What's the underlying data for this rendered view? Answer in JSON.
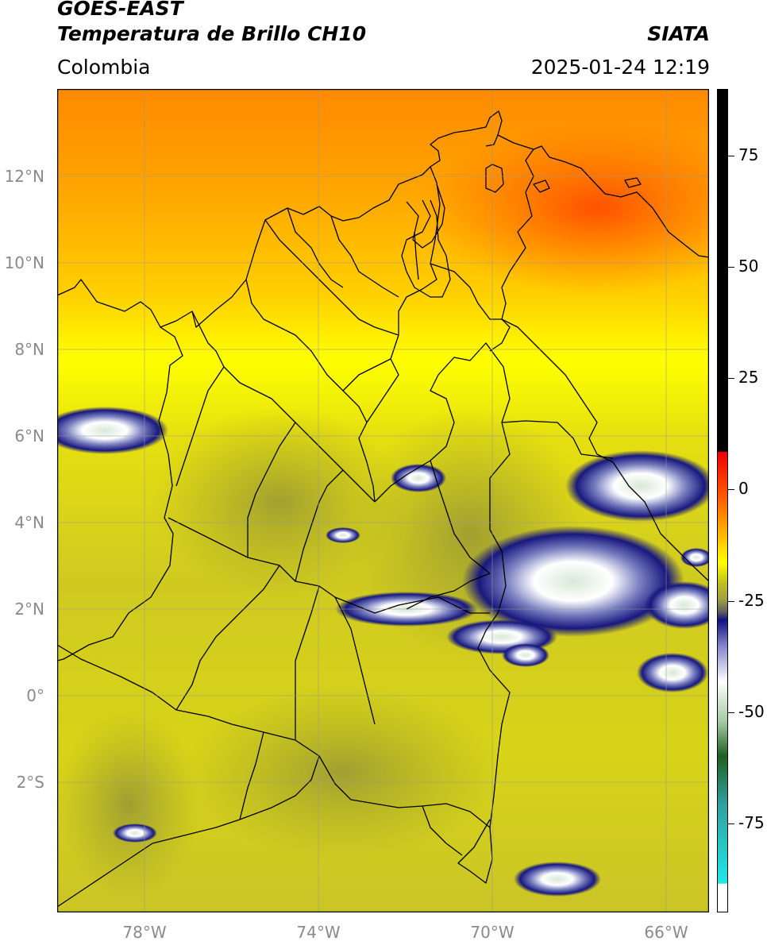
{
  "header": {
    "line1": "GOES-EAST",
    "line2": "Temperatura de Brillo CH10",
    "region": "Colombia",
    "brand": "SIATA",
    "datetime": "2025-01-24 12:19"
  },
  "map": {
    "lon_range": [
      -80,
      -65
    ],
    "lat_range": [
      -5,
      14
    ],
    "lat_labels": [
      "12°N",
      "10°N",
      "8°N",
      "6°N",
      "4°N",
      "2°N",
      "0°",
      "2°S"
    ],
    "lon_labels": [
      "78°W",
      "74°W",
      "70°W",
      "66°W"
    ]
  },
  "colorbar": {
    "range": [
      -95,
      90
    ],
    "tick_values": [
      75,
      50,
      25,
      0,
      -25,
      -50,
      -75
    ],
    "tick_labels": [
      "75",
      "50",
      "25",
      "0",
      "-25",
      "-50",
      "-75"
    ],
    "colors": {
      "black": "#000000",
      "red": "#f00000",
      "orange": "#ff8000",
      "yellow": "#ffff00",
      "olive": "#b0b030",
      "gray": "#606060",
      "navy": "#101080",
      "white": "#ffffff",
      "green": "#206020",
      "cyan": "#20e0e0"
    }
  }
}
